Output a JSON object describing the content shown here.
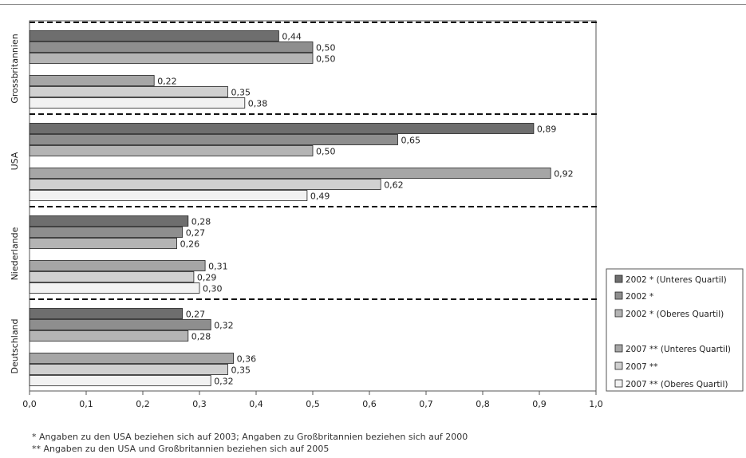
{
  "chart_data": {
    "type": "bar",
    "orientation": "horizontal",
    "xlim": [
      0,
      1.0
    ],
    "x_ticks": [
      "0,0",
      "0,1",
      "0,2",
      "0,3",
      "0,4",
      "0,5",
      "0,6",
      "0,7",
      "0,8",
      "0,9",
      "1,0"
    ],
    "categories": [
      "Grossbritannien",
      "USA",
      "Niederlande",
      "Deutschland"
    ],
    "series": [
      {
        "name": "2002 * (Unteres Quartil)",
        "color": "#6e6e6e",
        "values": [
          0.44,
          0.89,
          0.28,
          0.27
        ],
        "labels": [
          "0,44",
          "0,89",
          "0,28",
          "0,27"
        ]
      },
      {
        "name": "2002 *",
        "color": "#8e8e8e",
        "values": [
          0.5,
          0.65,
          0.27,
          0.32
        ],
        "labels": [
          "0,50",
          "0,65",
          "0,27",
          "0,32"
        ]
      },
      {
        "name": "2002 * (Oberes Quartil)",
        "color": "#b4b4b4",
        "values": [
          0.5,
          0.5,
          0.26,
          0.28
        ],
        "labels": [
          "0,50",
          "0,50",
          "0,26",
          "0,28"
        ]
      },
      {
        "name": "2007 ** (Unteres Quartil)",
        "color": "#a6a6a6",
        "values": [
          0.22,
          0.92,
          0.31,
          0.36
        ],
        "labels": [
          "0,22",
          "0,92",
          "0,31",
          "0,36"
        ]
      },
      {
        "name": "2007 **",
        "color": "#d0d0d0",
        "values": [
          0.35,
          0.62,
          0.29,
          0.35
        ],
        "labels": [
          "0,35",
          "0,62",
          "0,29",
          "0,35"
        ]
      },
      {
        "name": "2007 ** (Oberes Quartil)",
        "color": "#f2f2f2",
        "values": [
          0.38,
          0.49,
          0.3,
          0.32
        ],
        "labels": [
          "0,38",
          "0,49",
          "0,30",
          "0,32"
        ]
      }
    ],
    "legend_position": "right",
    "grid": false
  },
  "footnotes": [
    "*  Angaben zu den USA beziehen sich auf 2003; Angaben zu Großbritannien beziehen sich auf 2000",
    "**  Angaben zu den USA und Großbritannien beziehen sich auf 2005"
  ]
}
